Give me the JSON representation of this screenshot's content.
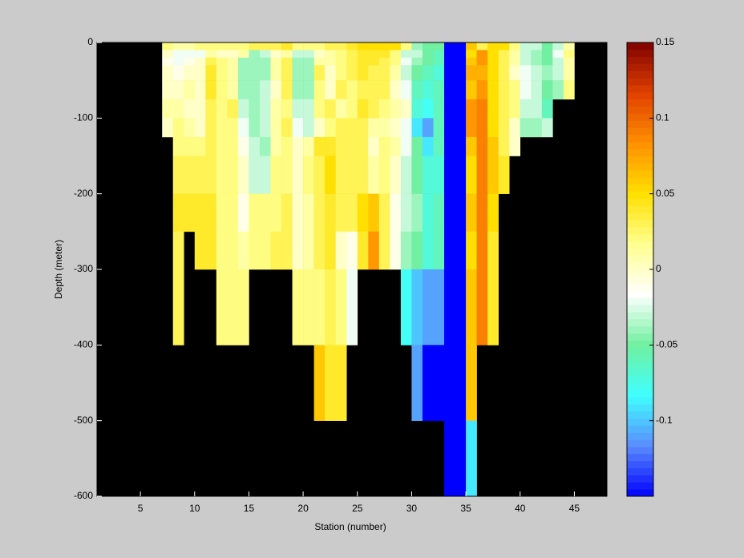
{
  "chart_data": {
    "type": "heatmap",
    "xlabel": "Station (number)",
    "ylabel": "Depth (meter)",
    "xlim": [
      1,
      48
    ],
    "ylim": [
      -600,
      0
    ],
    "xticks": [
      5,
      10,
      15,
      20,
      25,
      30,
      35,
      40,
      45
    ],
    "yticks": [
      0,
      -100,
      -200,
      -300,
      -400,
      -500,
      -600
    ],
    "clim": [
      -0.15,
      0.15
    ],
    "cticks": [
      0.15,
      0.1,
      0.05,
      0,
      -0.05,
      -0.1
    ],
    "colormap": [
      "#0000ff",
      "#5a8cff",
      "#40ffff",
      "#70f0a0",
      "#ffffff",
      "#ffff90",
      "#ffe000",
      "#ff9000",
      "#e04000",
      "#800000"
    ],
    "background": "#000000",
    "x": [
      7,
      8,
      9,
      10,
      11,
      12,
      13,
      14,
      15,
      16,
      17,
      18,
      19,
      20,
      21,
      22,
      23,
      24,
      25,
      26,
      27,
      28,
      29,
      30,
      31,
      32,
      33,
      34,
      35,
      36,
      37,
      38,
      39,
      40,
      41,
      42,
      43,
      44
    ],
    "y_edges": [
      0,
      -10,
      -20,
      -30,
      -50,
      -75,
      -100,
      -125,
      -150,
      -200,
      -250,
      -300,
      -400,
      -500,
      -600
    ],
    "z": [
      [
        0.02,
        0.0,
        -0.01,
        0.0,
        0.0,
        0.01,
        0.0,
        null,
        null,
        null,
        null,
        null,
        null,
        null
      ],
      [
        0.01,
        -0.02,
        -0.02,
        -0.01,
        0.0,
        0.01,
        0.02,
        0.02,
        0.03,
        0.04,
        0.03,
        0.03,
        null,
        null
      ],
      [
        0.01,
        -0.02,
        -0.01,
        0.0,
        0.01,
        0.0,
        0.01,
        0.02,
        0.03,
        0.04,
        null,
        null,
        null,
        null
      ],
      [
        0.02,
        -0.02,
        0.0,
        0.0,
        0.0,
        0.0,
        0.0,
        0.02,
        0.03,
        0.04,
        0.04,
        null,
        null,
        null
      ],
      [
        0.02,
        0.01,
        0.03,
        0.04,
        0.04,
        0.03,
        0.03,
        0.03,
        0.03,
        0.04,
        0.04,
        null,
        null,
        null
      ],
      [
        0.02,
        0.0,
        0.02,
        0.02,
        0.02,
        0.02,
        0.02,
        0.02,
        0.02,
        0.02,
        0.02,
        0.02,
        null,
        null
      ],
      [
        0.02,
        0.0,
        0.01,
        0.01,
        0.01,
        0.03,
        0.02,
        0.02,
        0.02,
        0.02,
        0.02,
        0.02,
        null,
        null
      ],
      [
        0.02,
        0.01,
        -0.04,
        -0.04,
        -0.04,
        -0.03,
        -0.02,
        -0.01,
        0.0,
        -0.01,
        0.01,
        0.02,
        null,
        null
      ],
      [
        0.03,
        -0.04,
        -0.04,
        -0.04,
        -0.04,
        -0.04,
        -0.04,
        -0.03,
        -0.03,
        0.02,
        0.02,
        null,
        null,
        null
      ],
      [
        0.03,
        -0.03,
        -0.04,
        -0.04,
        -0.03,
        -0.03,
        -0.03,
        -0.04,
        -0.03,
        0.02,
        0.02,
        null,
        null,
        null
      ],
      [
        0.03,
        0.0,
        0.01,
        0.01,
        0.0,
        0.01,
        0.01,
        0.01,
        0.02,
        0.02,
        0.03,
        null,
        null,
        null
      ],
      [
        0.04,
        0.01,
        0.03,
        0.03,
        0.03,
        0.02,
        0.03,
        0.02,
        0.02,
        0.03,
        0.03,
        null,
        null,
        null
      ],
      [
        0.02,
        -0.03,
        -0.04,
        -0.04,
        -0.04,
        -0.03,
        -0.02,
        0.0,
        0.0,
        0.0,
        0.0,
        0.02,
        null,
        null
      ],
      [
        0.02,
        -0.03,
        -0.04,
        -0.04,
        -0.04,
        -0.03,
        -0.03,
        0.01,
        0.02,
        0.01,
        0.01,
        0.02,
        null,
        null
      ],
      [
        0.02,
        0.0,
        0.01,
        0.03,
        0.02,
        0.02,
        0.0,
        0.04,
        0.03,
        0.03,
        0.03,
        0.02,
        0.06,
        null
      ],
      [
        0.03,
        0.01,
        0.01,
        0.0,
        0.0,
        0.03,
        0.02,
        0.04,
        0.05,
        0.04,
        0.04,
        0.03,
        0.04,
        null
      ],
      [
        0.03,
        0.02,
        0.02,
        0.02,
        0.03,
        0.01,
        0.03,
        0.03,
        0.03,
        0.03,
        0.0,
        0.02,
        0.04,
        null
      ],
      [
        0.04,
        0.03,
        0.03,
        0.03,
        0.02,
        0.02,
        0.03,
        0.03,
        0.03,
        0.03,
        -0.01,
        -0.02,
        null,
        null
      ],
      [
        0.05,
        0.04,
        0.04,
        0.04,
        0.03,
        0.04,
        0.03,
        0.03,
        0.03,
        0.05,
        0.04,
        null,
        null,
        null
      ],
      [
        0.05,
        0.04,
        0.04,
        0.03,
        0.03,
        0.03,
        0.01,
        0.0,
        0.01,
        0.06,
        0.08,
        null,
        null,
        null
      ],
      [
        0.05,
        0.04,
        0.03,
        0.03,
        0.03,
        0.02,
        0.01,
        0.02,
        0.02,
        0.03,
        0.03,
        null,
        null,
        null
      ],
      [
        0.05,
        0.02,
        0.02,
        0.01,
        0.0,
        0.01,
        0.0,
        0.01,
        0.0,
        -0.01,
        -0.01,
        null,
        null,
        null
      ],
      [
        0.02,
        -0.03,
        -0.02,
        -0.03,
        -0.02,
        0.0,
        -0.02,
        -0.02,
        -0.03,
        -0.03,
        -0.04,
        -0.08,
        null,
        null
      ],
      [
        -0.04,
        -0.03,
        -0.04,
        -0.05,
        -0.06,
        -0.07,
        -0.09,
        -0.05,
        -0.05,
        -0.04,
        -0.05,
        -0.1,
        -0.11,
        null
      ],
      [
        -0.05,
        -0.05,
        -0.05,
        -0.06,
        -0.07,
        -0.08,
        -0.11,
        -0.09,
        -0.07,
        -0.07,
        -0.07,
        -0.11,
        -0.15,
        null
      ],
      [
        -0.05,
        -0.06,
        -0.06,
        -0.07,
        -0.06,
        -0.06,
        -0.06,
        -0.06,
        -0.07,
        -0.06,
        -0.06,
        -0.11,
        -0.15,
        null
      ],
      [
        -0.15,
        -0.15,
        -0.15,
        -0.15,
        -0.15,
        -0.15,
        -0.15,
        -0.15,
        -0.15,
        -0.15,
        -0.15,
        -0.15,
        -0.15,
        -0.15
      ],
      [
        -0.15,
        -0.15,
        -0.15,
        -0.15,
        -0.15,
        -0.15,
        -0.15,
        -0.15,
        -0.15,
        -0.15,
        -0.15,
        -0.15,
        -0.15,
        -0.15
      ],
      [
        0.06,
        0.05,
        0.06,
        0.07,
        0.06,
        0.08,
        0.08,
        0.06,
        0.05,
        0.06,
        0.05,
        0.06,
        0.06,
        -0.09
      ],
      [
        0.03,
        0.08,
        0.08,
        0.07,
        0.08,
        0.09,
        0.09,
        0.09,
        0.09,
        0.09,
        0.09,
        0.09,
        null,
        null
      ],
      [
        0.05,
        0.05,
        0.05,
        0.05,
        0.05,
        0.05,
        0.05,
        0.06,
        0.06,
        0.05,
        0.04,
        0.04,
        null,
        null
      ],
      [
        0.05,
        0.03,
        0.03,
        0.03,
        0.03,
        0.03,
        0.03,
        0.03,
        0.04,
        null,
        null,
        null,
        null,
        null
      ],
      [
        0.02,
        0.01,
        0.01,
        0.0,
        0.02,
        0.02,
        0.0,
        0.0,
        null,
        null,
        null,
        null,
        null,
        null
      ],
      [
        -0.03,
        -0.03,
        -0.03,
        -0.02,
        -0.02,
        -0.03,
        -0.04,
        null,
        null,
        null,
        null,
        null,
        null,
        null
      ],
      [
        -0.03,
        -0.04,
        -0.04,
        -0.03,
        -0.03,
        -0.03,
        -0.04,
        null,
        null,
        null,
        null,
        null,
        null,
        null
      ],
      [
        -0.05,
        -0.05,
        -0.05,
        -0.04,
        -0.05,
        -0.06,
        -0.03,
        null,
        null,
        null,
        null,
        null,
        null,
        null
      ],
      [
        -0.03,
        -0.02,
        -0.03,
        -0.03,
        -0.04,
        null,
        null,
        null,
        null,
        null,
        null,
        null,
        null,
        null
      ],
      [
        0.01,
        0.02,
        0.01,
        0.01,
        0.02,
        null,
        null,
        null,
        null,
        null,
        null,
        null,
        null,
        null
      ]
    ]
  }
}
